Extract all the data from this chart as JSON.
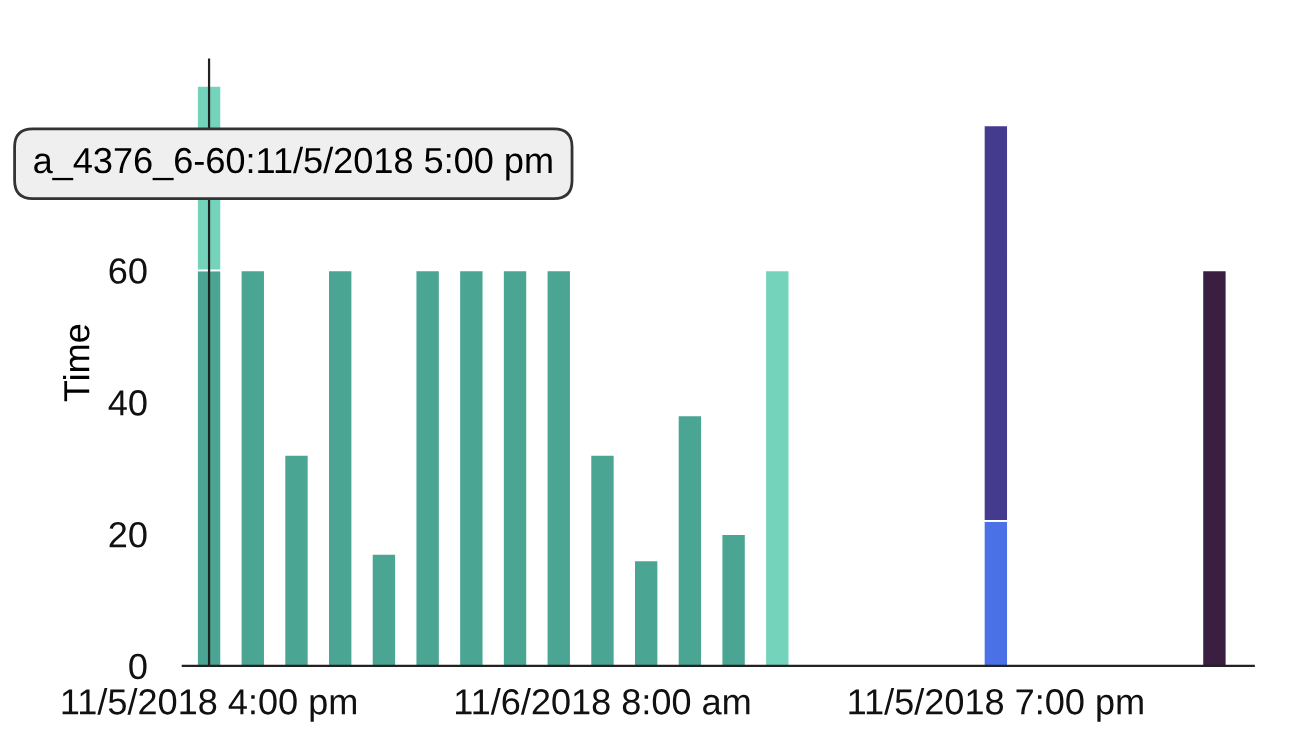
{
  "chart_data": {
    "type": "bar",
    "stacked": true,
    "ylabel": "Time",
    "categories": [
      "11/5/2018 4:00 pm",
      null,
      null,
      null,
      null,
      null,
      null,
      null,
      null,
      "11/6/2018 8:00 am",
      null,
      null,
      null,
      null,
      null,
      null,
      null,
      null,
      "11/5/2018 7:00 pm",
      null,
      null,
      null,
      null,
      null
    ],
    "series": [
      {
        "color": "#4ba593",
        "values": [
          60,
          60,
          32,
          60,
          17,
          60,
          60,
          60,
          60,
          32,
          16,
          38,
          20,
          null,
          null,
          null,
          null,
          null,
          null,
          null,
          null,
          null,
          null,
          null
        ]
      },
      {
        "color": "#74d3bb",
        "values": [
          28,
          null,
          null,
          null,
          null,
          null,
          null,
          null,
          null,
          null,
          null,
          null,
          null,
          60,
          null,
          null,
          null,
          null,
          null,
          null,
          null,
          null,
          null,
          null
        ]
      },
      {
        "color": "#4a72e6",
        "values": [
          null,
          null,
          null,
          null,
          null,
          null,
          null,
          null,
          null,
          null,
          null,
          null,
          null,
          null,
          null,
          null,
          null,
          null,
          22,
          null,
          null,
          null,
          null,
          null
        ]
      },
      {
        "color": "#443a8e",
        "values": [
          null,
          null,
          null,
          null,
          null,
          null,
          null,
          null,
          null,
          null,
          null,
          null,
          null,
          null,
          null,
          null,
          null,
          null,
          60,
          null,
          null,
          null,
          null,
          null
        ]
      },
      {
        "color": "#3b1f42",
        "values": [
          null,
          null,
          null,
          null,
          null,
          null,
          null,
          null,
          null,
          null,
          null,
          null,
          null,
          null,
          null,
          null,
          null,
          null,
          null,
          null,
          null,
          null,
          null,
          60
        ]
      }
    ],
    "ylim": [
      0,
      92
    ],
    "yticks": [
      0,
      20,
      40,
      60
    ],
    "grid": false,
    "legend": false,
    "annotations": [
      "a_4376_6-60:11/5/2018 5:00 pm"
    ]
  }
}
